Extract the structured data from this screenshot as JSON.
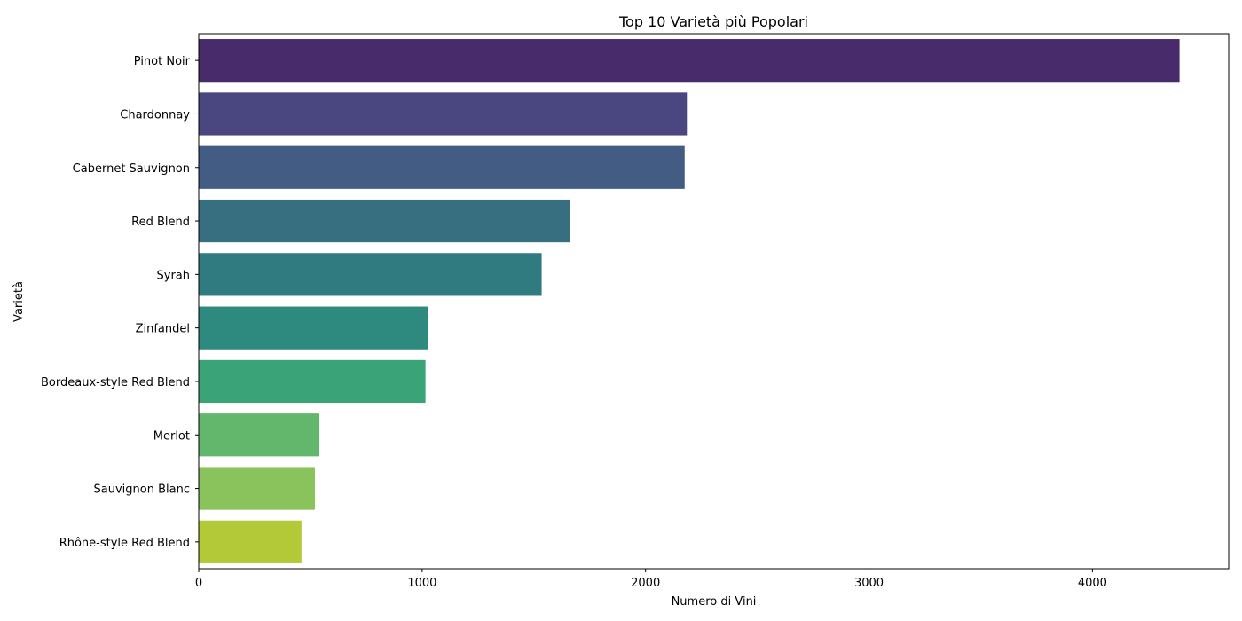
{
  "chart_data": {
    "type": "bar",
    "orientation": "horizontal",
    "title": "Top 10 Varietà più Popolari",
    "xlabel": "Numero di Vini",
    "ylabel": "Varietà",
    "xlim": [
      0,
      4610
    ],
    "xticks": [
      0,
      1000,
      2000,
      3000,
      4000
    ],
    "grid": false,
    "categories": [
      "Pinot Noir",
      "Chardonnay",
      "Cabernet Sauvignon",
      "Red Blend",
      "Syrah",
      "Zinfandel",
      "Bordeaux-style Red Blend",
      "Merlot",
      "Sauvignon Blanc",
      "Rhône-style Red Blend"
    ],
    "values": [
      4390,
      2185,
      2175,
      1660,
      1535,
      1025,
      1015,
      540,
      520,
      460
    ],
    "colors": [
      "#482b6a",
      "#4a4680",
      "#425c83",
      "#386f80",
      "#307b80",
      "#2e8a7e",
      "#3ba378",
      "#62b76d",
      "#8ac25b",
      "#b3c938"
    ]
  }
}
